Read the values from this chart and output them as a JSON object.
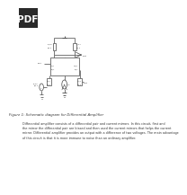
{
  "bg_color": "#ffffff",
  "pdf_badge_color": "#2a2a2a",
  "pdf_text_color": "#ffffff",
  "figure_caption": "Figure 1: Schematic diagram for Differential Amplifier",
  "body_text": "Differential amplifier consists of a differential pair and current mirrors. In this circuit, first and\nthe mirror the differential pair are biased and then used the current mirrors that helps the current\nmirror. Differential amplifier provides an output with a difference of two voltages. The main advantage\nof this circuit is that it is more immune to noise than an ordinary amplifier.",
  "caption_fontsize": 2.8,
  "body_fontsize": 2.4,
  "circuit_color": "#444444",
  "label_fontsize": 1.6
}
